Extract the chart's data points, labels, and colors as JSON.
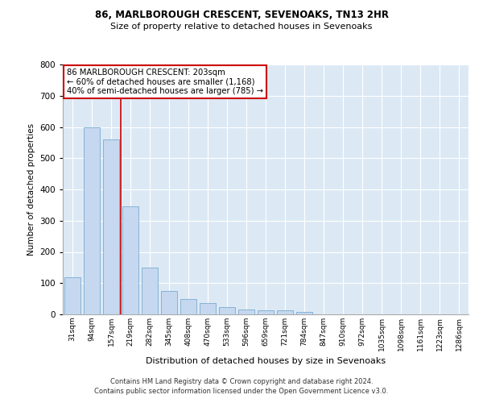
{
  "title1": "86, MARLBOROUGH CRESCENT, SEVENOAKS, TN13 2HR",
  "title2": "Size of property relative to detached houses in Sevenoaks",
  "xlabel": "Distribution of detached houses by size in Sevenoaks",
  "ylabel": "Number of detached properties",
  "categories": [
    "31sqm",
    "94sqm",
    "157sqm",
    "219sqm",
    "282sqm",
    "345sqm",
    "408sqm",
    "470sqm",
    "533sqm",
    "596sqm",
    "659sqm",
    "721sqm",
    "784sqm",
    "847sqm",
    "910sqm",
    "972sqm",
    "1035sqm",
    "1098sqm",
    "1161sqm",
    "1223sqm",
    "1286sqm"
  ],
  "values": [
    120,
    600,
    560,
    345,
    150,
    75,
    50,
    35,
    22,
    15,
    14,
    13,
    8,
    0,
    0,
    0,
    0,
    0,
    0,
    0,
    0
  ],
  "bar_color": "#c5d8ef",
  "bar_edge_color": "#7aabcf",
  "annotation_text_line1": "86 MARLBOROUGH CRESCENT: 203sqm",
  "annotation_text_line2": "← 60% of detached houses are smaller (1,168)",
  "annotation_text_line3": "40% of semi-detached houses are larger (785) →",
  "annotation_box_color": "#ffffff",
  "annotation_box_edge": "#cc0000",
  "vline_color": "#cc0000",
  "vline_x_index": 2.5,
  "ylim": [
    0,
    800
  ],
  "yticks": [
    0,
    100,
    200,
    300,
    400,
    500,
    600,
    700,
    800
  ],
  "background_color": "#dce9f5",
  "grid_color": "#ffffff",
  "footer1": "Contains HM Land Registry data © Crown copyright and database right 2024.",
  "footer2": "Contains public sector information licensed under the Open Government Licence v3.0."
}
